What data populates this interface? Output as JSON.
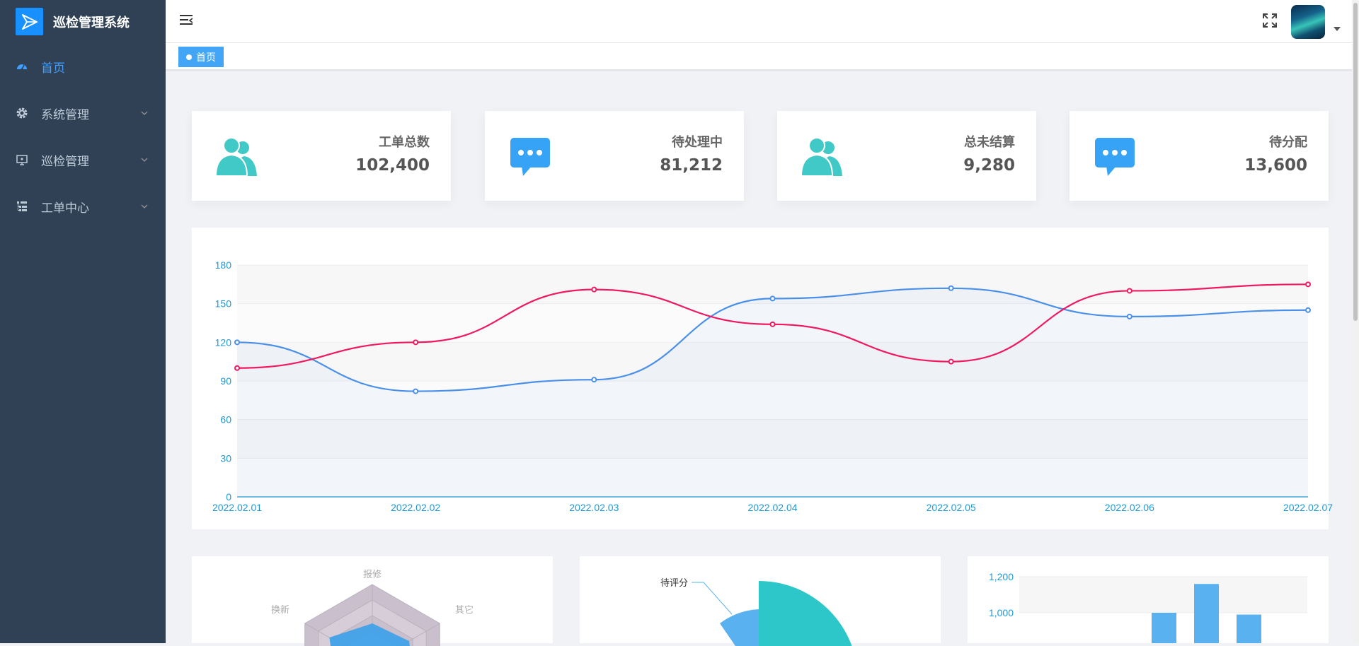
{
  "app": {
    "title": "巡检管理系统"
  },
  "sidebar": {
    "items": [
      {
        "label": "首页",
        "icon": "dashboard-icon",
        "active": true
      },
      {
        "label": "系统管理",
        "icon": "gear-icon",
        "expandable": true
      },
      {
        "label": "巡检管理",
        "icon": "monitor-icon",
        "expandable": true
      },
      {
        "label": "工单中心",
        "icon": "tree-list-icon",
        "expandable": true
      }
    ]
  },
  "tags": [
    {
      "label": "首页",
      "active": true
    }
  ],
  "stats": [
    {
      "label": "工单总数",
      "value": "102,400",
      "icon": "users-icon",
      "color": "#40c9c6"
    },
    {
      "label": "待处理中",
      "value": "81,212",
      "icon": "message-icon",
      "color": "#36a3f7"
    },
    {
      "label": "总未结算",
      "value": "9,280",
      "icon": "users-icon",
      "color": "#40c9c6"
    },
    {
      "label": "待分配",
      "value": "13,600",
      "icon": "message-icon",
      "color": "#36a3f7"
    }
  ],
  "colors": {
    "blue_series": "#4a90e8",
    "red_series": "#f0195f",
    "axis": "#1e9ad6",
    "sidebar": "#304156"
  },
  "chart_data": [
    {
      "type": "line",
      "categories": [
        "2022.02.01",
        "2022.02.02",
        "2022.02.03",
        "2022.02.04",
        "2022.02.05",
        "2022.02.06",
        "2022.02.07"
      ],
      "series": [
        {
          "values": [
            120,
            82,
            91,
            154,
            162,
            140,
            145
          ]
        },
        {
          "values": [
            100,
            120,
            161,
            134,
            105,
            160,
            165
          ]
        }
      ],
      "yticks": [
        0,
        30,
        60,
        90,
        120,
        150,
        180
      ],
      "ylim": [
        0,
        180
      ],
      "smooth": true,
      "grid": true
    },
    {
      "type": "radar",
      "indicators": [
        "报修",
        "其它",
        "换新"
      ]
    },
    {
      "type": "pie",
      "labels": [
        "待评分"
      ]
    },
    {
      "type": "bar",
      "yticks": [
        1000,
        1200
      ],
      "ytick_labels": [
        "1,000",
        "1,200"
      ],
      "values": [
        1000,
        1160,
        990
      ],
      "ylim": [
        800,
        1200
      ]
    }
  ]
}
